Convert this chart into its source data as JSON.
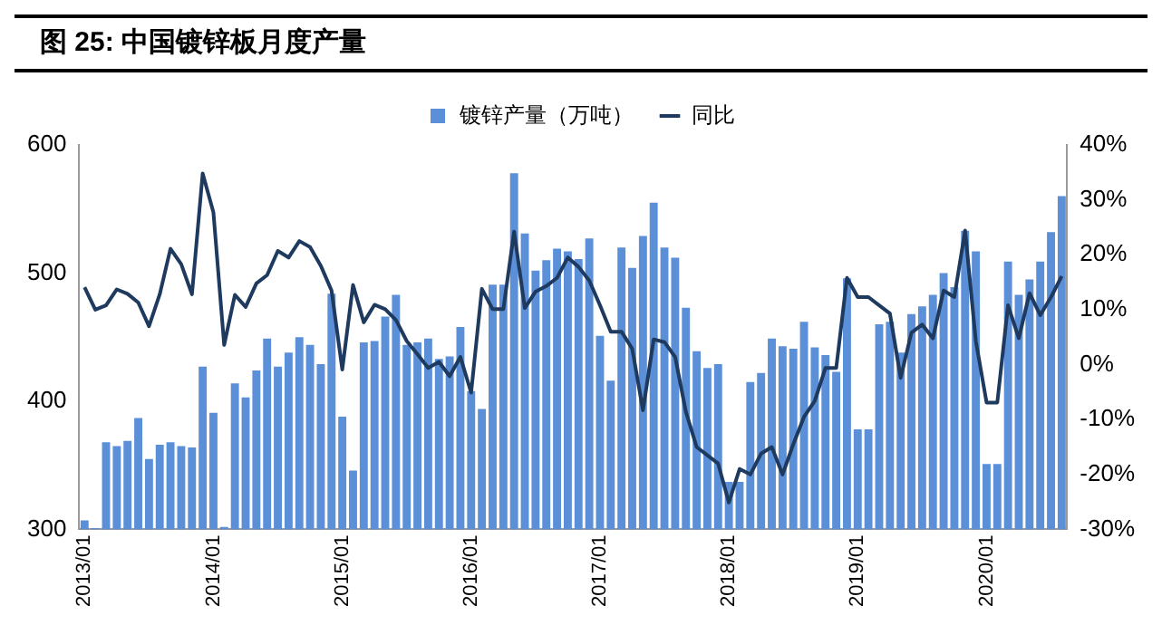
{
  "chart_data": {
    "type": "bar",
    "title": "图 25:  中国镀锌板月度产量",
    "categories": [
      "2013/01",
      null,
      null,
      null,
      null,
      null,
      null,
      null,
      null,
      null,
      null,
      null,
      "2014/01",
      null,
      null,
      null,
      null,
      null,
      null,
      null,
      null,
      null,
      null,
      null,
      "2015/01",
      null,
      null,
      null,
      null,
      null,
      null,
      null,
      null,
      null,
      null,
      null,
      "2016/01",
      null,
      null,
      null,
      null,
      null,
      null,
      null,
      null,
      null,
      null,
      null,
      "2017/01",
      null,
      null,
      null,
      null,
      null,
      null,
      null,
      null,
      null,
      null,
      null,
      "2018/01",
      null,
      null,
      null,
      null,
      null,
      null,
      null,
      null,
      null,
      null,
      null,
      "2019/01",
      null,
      null,
      null,
      null,
      null,
      null,
      null,
      null,
      null,
      null,
      null,
      "2020/01",
      null,
      null,
      null,
      null,
      null,
      null,
      null
    ],
    "series": [
      {
        "name": "镀锌产量（万吨）",
        "color": "#5b8fd8",
        "values": [
          307,
          301,
          368,
          365,
          369,
          387,
          355,
          366,
          368,
          365,
          364,
          427,
          391,
          302,
          414,
          403,
          424,
          449,
          427,
          438,
          450,
          444,
          429,
          484,
          388,
          346,
          446,
          447,
          466,
          483,
          444,
          446,
          449,
          433,
          435,
          458,
          408,
          394,
          491,
          491,
          578,
          531,
          502,
          510,
          519,
          517,
          511,
          527,
          451,
          416,
          520,
          504,
          529,
          555,
          520,
          512,
          473,
          439,
          426,
          429,
          337,
          337,
          415,
          422,
          449,
          443,
          441,
          462,
          442,
          436,
          423,
          496,
          378,
          378,
          460,
          462,
          438,
          468,
          474,
          483,
          500,
          489,
          533,
          517,
          351,
          351,
          509,
          483,
          495,
          509,
          532,
          560
        ]
      },
      {
        "name": "同比",
        "type": "line",
        "axis": "y2",
        "color": "#1f3a5f",
        "values": [
          14.1,
          10.0,
          10.8,
          13.7,
          12.9,
          11.3,
          7.0,
          12.8,
          21.1,
          18.3,
          12.8,
          34.8,
          27.7,
          3.6,
          12.7,
          10.5,
          14.8,
          16.3,
          20.7,
          19.5,
          22.5,
          21.4,
          18.0,
          13.5,
          -0.9,
          14.5,
          7.7,
          10.9,
          10.1,
          8.1,
          4.3,
          1.9,
          -0.6,
          0.5,
          -2.1,
          1.4,
          -5.1,
          13.8,
          10.1,
          10.1,
          24.2,
          10.3,
          13.3,
          14.3,
          15.8,
          19.5,
          17.8,
          15.3,
          10.8,
          6.0,
          6.0,
          2.9,
          -8.3,
          4.6,
          4.1,
          1.4,
          -8.6,
          -15.0,
          -16.5,
          -18.0,
          -25.1,
          -19.0,
          -20.0,
          -16.2,
          -15.0,
          -20.0,
          -14.5,
          -9.5,
          -6.6,
          -0.6,
          -0.6,
          15.8,
          12.3,
          12.3,
          10.8,
          9.3,
          -2.4,
          5.8,
          7.3,
          4.8,
          13.5,
          12.3,
          24.4,
          4.3,
          -6.9,
          -6.9,
          10.8,
          4.8,
          13.0,
          9.0,
          12.3,
          16.1
        ]
      }
    ],
    "ylim": [
      300,
      600
    ],
    "yticks": [
      300,
      400,
      500,
      600
    ],
    "y2lim": [
      -30,
      40
    ],
    "y2ticks": [
      {
        "value": -30,
        "label": "-30%"
      },
      {
        "value": -20,
        "label": "-20%"
      },
      {
        "value": -10,
        "label": "-10%"
      },
      {
        "value": 0,
        "label": "0%"
      },
      {
        "value": 10,
        "label": "10%"
      },
      {
        "value": 20,
        "label": "20%"
      },
      {
        "value": 30,
        "label": "30%"
      },
      {
        "value": 40,
        "label": "40%"
      }
    ],
    "grid": false,
    "legend": "top",
    "marker": "none",
    "line_style": "solid"
  }
}
